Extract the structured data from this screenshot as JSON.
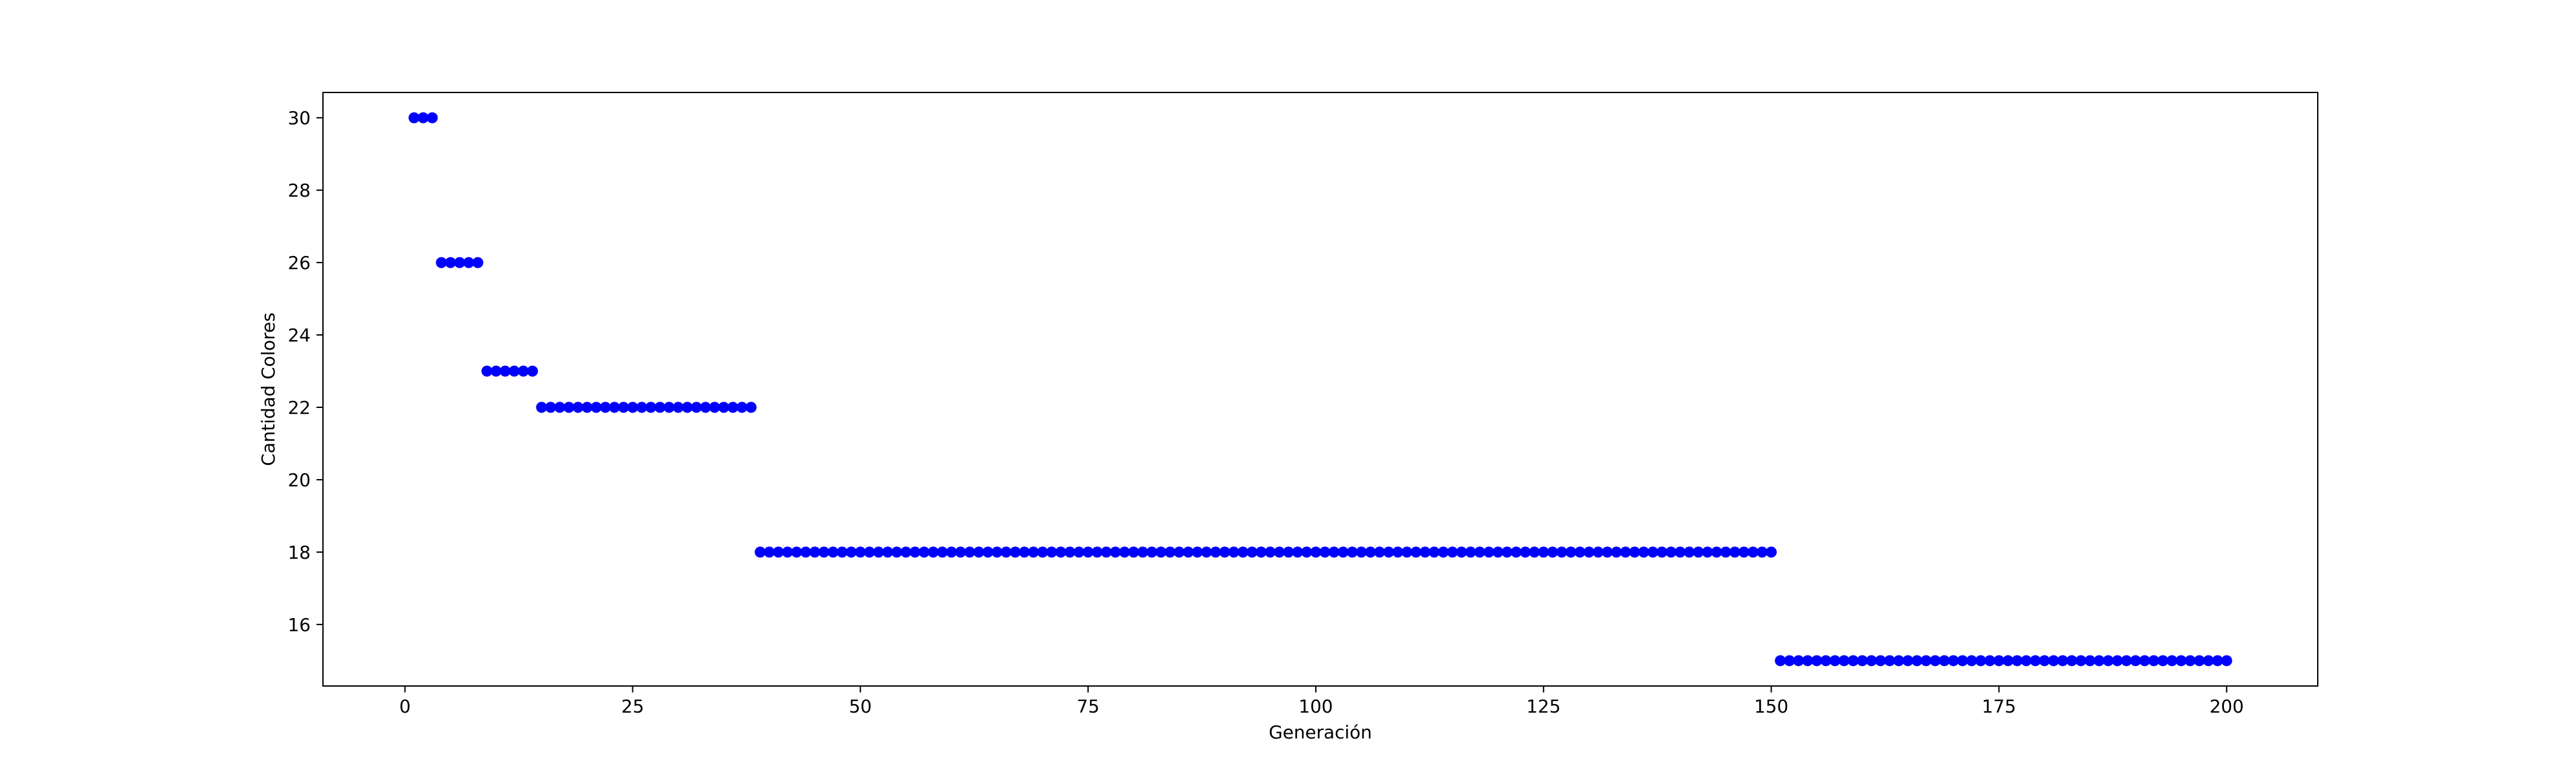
{
  "chart_data": {
    "type": "scatter",
    "title": "",
    "xlabel": "Generación",
    "ylabel": "Cantidad Colores",
    "xlim": [
      -9,
      210
    ],
    "ylim": [
      14.3,
      30.7
    ],
    "xticks": [
      0,
      25,
      50,
      75,
      100,
      125,
      150,
      175,
      200
    ],
    "yticks": [
      16,
      18,
      20,
      22,
      24,
      26,
      28,
      30
    ],
    "grid": false,
    "legend": "none",
    "marker_color": "#0000ff",
    "series": [
      {
        "segments": [
          {
            "x_start": 1,
            "x_end": 3,
            "y": 30
          },
          {
            "x_start": 4,
            "x_end": 8,
            "y": 26
          },
          {
            "x_start": 9,
            "x_end": 14,
            "y": 23
          },
          {
            "x_start": 15,
            "x_end": 38,
            "y": 22
          },
          {
            "x_start": 39,
            "x_end": 150,
            "y": 18
          },
          {
            "x_start": 151,
            "x_end": 200,
            "y": 15
          }
        ]
      }
    ]
  }
}
